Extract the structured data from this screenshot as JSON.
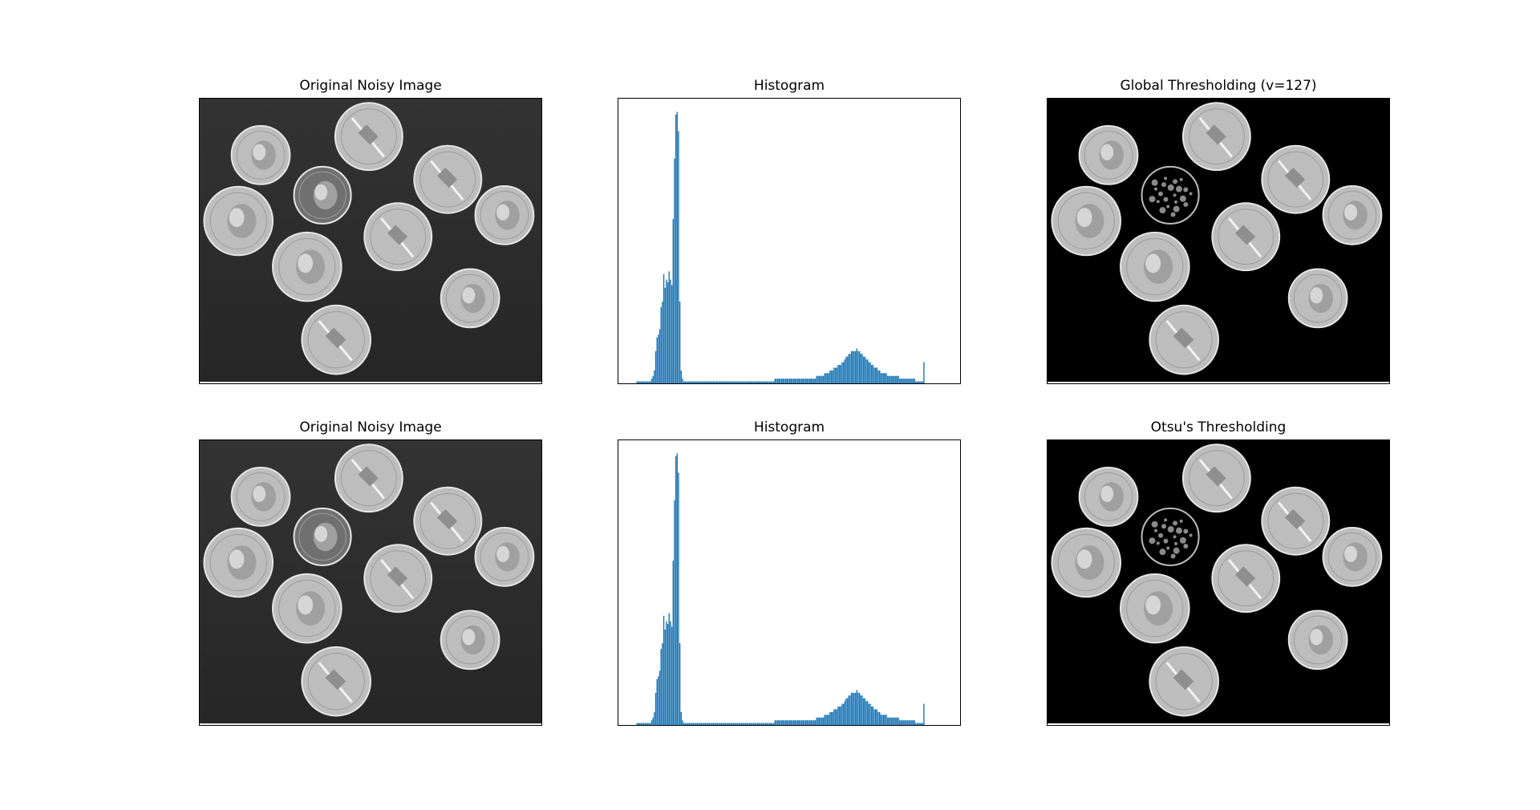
{
  "panels": [
    {
      "title": "Original Noisy Image",
      "kind": "image",
      "variant": "noisy"
    },
    {
      "title": "Histogram",
      "kind": "histogram"
    },
    {
      "title": "Global Thresholding (v=127)",
      "kind": "image",
      "variant": "global"
    },
    {
      "title": "Original Noisy Image",
      "kind": "image",
      "variant": "noisy"
    },
    {
      "title": "Histogram",
      "kind": "histogram"
    },
    {
      "title": "Otsu's Thresholding",
      "kind": "image",
      "variant": "otsu"
    }
  ],
  "colors": {
    "bar": "#1f77b4",
    "noisy_background": "#2e2e2e",
    "threshold_background": "#000000",
    "coin": "#bdbdbd",
    "coin_edge": "#e6e6e6"
  },
  "chart_data": {
    "type": "bar",
    "title": "Histogram",
    "xlabel": "",
    "ylabel": "",
    "xlim": [
      0,
      256
    ],
    "ylim": [
      0,
      1.0
    ],
    "grid": false,
    "ticks": "none",
    "bins": 256,
    "values": [
      0.0,
      0.0,
      0.0,
      0.0,
      0.0,
      0.0,
      0.0,
      0.0,
      0.0,
      0.0,
      0.0,
      0.0,
      0.0,
      0.0,
      0.01,
      0.01,
      0.01,
      0.01,
      0.01,
      0.01,
      0.01,
      0.01,
      0.01,
      0.01,
      0.01,
      0.02,
      0.03,
      0.05,
      0.12,
      0.17,
      0.18,
      0.2,
      0.28,
      0.3,
      0.4,
      0.35,
      0.38,
      0.37,
      0.41,
      0.38,
      0.36,
      0.6,
      0.82,
      0.98,
      0.99,
      0.92,
      0.3,
      0.05,
      0.02,
      0.01,
      0.01,
      0.01,
      0.01,
      0.01,
      0.01,
      0.01,
      0.01,
      0.01,
      0.01,
      0.01,
      0.01,
      0.01,
      0.01,
      0.01,
      0.01,
      0.01,
      0.01,
      0.01,
      0.01,
      0.01,
      0.01,
      0.01,
      0.01,
      0.01,
      0.01,
      0.01,
      0.01,
      0.01,
      0.01,
      0.01,
      0.01,
      0.01,
      0.01,
      0.01,
      0.01,
      0.01,
      0.01,
      0.01,
      0.01,
      0.01,
      0.01,
      0.01,
      0.01,
      0.01,
      0.01,
      0.01,
      0.01,
      0.01,
      0.01,
      0.01,
      0.01,
      0.01,
      0.01,
      0.01,
      0.01,
      0.01,
      0.01,
      0.01,
      0.01,
      0.01,
      0.01,
      0.01,
      0.01,
      0.01,
      0.01,
      0.01,
      0.01,
      0.02,
      0.02,
      0.02,
      0.02,
      0.02,
      0.02,
      0.02,
      0.02,
      0.02,
      0.02,
      0.02,
      0.02,
      0.02,
      0.02,
      0.02,
      0.02,
      0.02,
      0.02,
      0.02,
      0.02,
      0.02,
      0.02,
      0.02,
      0.02,
      0.02,
      0.02,
      0.02,
      0.02,
      0.02,
      0.02,
      0.02,
      0.03,
      0.03,
      0.03,
      0.03,
      0.03,
      0.03,
      0.04,
      0.04,
      0.04,
      0.04,
      0.05,
      0.05,
      0.05,
      0.06,
      0.06,
      0.06,
      0.07,
      0.07,
      0.07,
      0.08,
      0.08,
      0.09,
      0.1,
      0.1,
      0.11,
      0.11,
      0.12,
      0.12,
      0.12,
      0.12,
      0.13,
      0.12,
      0.12,
      0.11,
      0.11,
      0.1,
      0.1,
      0.09,
      0.09,
      0.08,
      0.08,
      0.07,
      0.07,
      0.06,
      0.06,
      0.06,
      0.05,
      0.05,
      0.04,
      0.04,
      0.04,
      0.04,
      0.04,
      0.03,
      0.03,
      0.03,
      0.03,
      0.03,
      0.03,
      0.03,
      0.03,
      0.03,
      0.02,
      0.02,
      0.02,
      0.02,
      0.02,
      0.02,
      0.02,
      0.02,
      0.02,
      0.02,
      0.02,
      0.02,
      0.01,
      0.01,
      0.01,
      0.01,
      0.01,
      0.01,
      0.08,
      0.0,
      0.0,
      0.0,
      0.0,
      0.0,
      0.0,
      0.0,
      0.0,
      0.0,
      0.0,
      0.0,
      0.0,
      0.0,
      0.0,
      0.0,
      0.0,
      0.0,
      0.0,
      0.0,
      0.0,
      0.0,
      0.0,
      0.0,
      0.0,
      0.0,
      0.0,
      0.0,
      0.0,
      0.0,
      0.0,
      0.0
    ]
  }
}
